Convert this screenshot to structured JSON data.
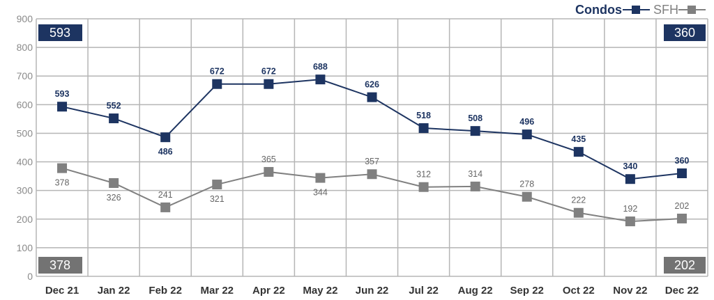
{
  "chart_data": {
    "type": "line",
    "categories": [
      "Dec 21",
      "Jan 22",
      "Feb 22",
      "Mar 22",
      "Apr 22",
      "May 22",
      "Jun 22",
      "Jul 22",
      "Aug 22",
      "Sep 22",
      "Oct 22",
      "Nov 22",
      "Dec 22"
    ],
    "series": [
      {
        "name": "Condos",
        "color": "#1d3461",
        "values": [
          593,
          552,
          486,
          672,
          672,
          688,
          626,
          518,
          508,
          496,
          435,
          340,
          360
        ]
      },
      {
        "name": "SFH",
        "color": "#808080",
        "values": [
          378,
          326,
          241,
          321,
          365,
          344,
          357,
          312,
          314,
          278,
          222,
          192,
          202
        ]
      }
    ],
    "ylim": [
      0,
      900
    ],
    "yticks": [
      "0",
      "100",
      "200",
      "300",
      "400",
      "500",
      "600",
      "700",
      "800",
      "900"
    ],
    "grid": true,
    "legend": "top-right",
    "callouts": {
      "condos_start": "593",
      "condos_end": "360",
      "sfh_start": "378",
      "sfh_end": "202"
    }
  }
}
